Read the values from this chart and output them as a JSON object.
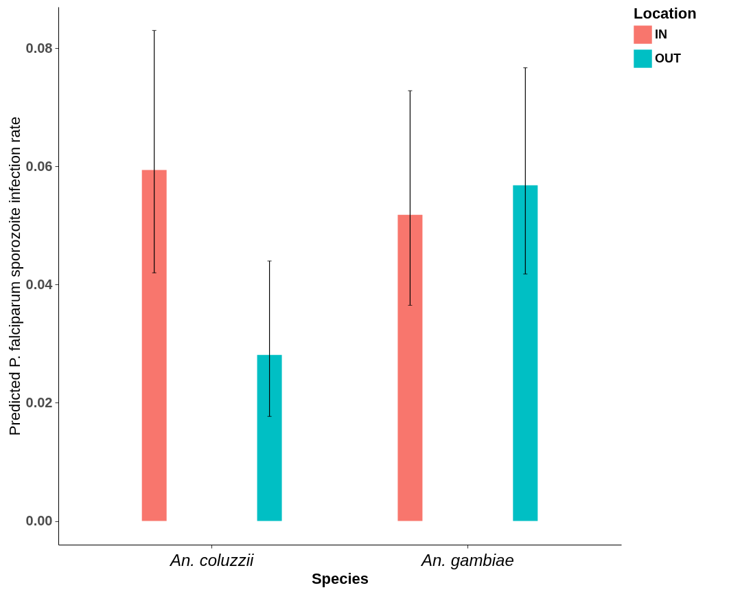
{
  "chart_data": {
    "type": "bar",
    "xlabel": "Species",
    "ylabel": "Predicted P. falciparum  sporozoite infection rate",
    "legend_title": "Location",
    "legend": "right",
    "grid": false,
    "categories": [
      "An. coluzzii",
      "An. gambiae"
    ],
    "ylim": [
      -0.004,
      0.087
    ],
    "yticks": [
      {
        "value": 0,
        "label": "0.00"
      },
      {
        "value": 0.02,
        "label": "0.02"
      },
      {
        "value": 0.04,
        "label": "0.04"
      },
      {
        "value": 0.06,
        "label": "0.06"
      },
      {
        "value": 0.08,
        "label": "0.08"
      }
    ],
    "series": [
      {
        "name": "IN",
        "color": "#f8766d",
        "values": [
          0.0594,
          0.0518
        ],
        "errors": [
          [
            0.042,
            0.083
          ],
          [
            0.0365,
            0.0728
          ]
        ]
      },
      {
        "name": "OUT",
        "color": "#00bfc4",
        "values": [
          0.0281,
          0.0568
        ],
        "errors": [
          [
            0.0177,
            0.044
          ],
          [
            0.0418,
            0.0767
          ]
        ]
      }
    ]
  }
}
